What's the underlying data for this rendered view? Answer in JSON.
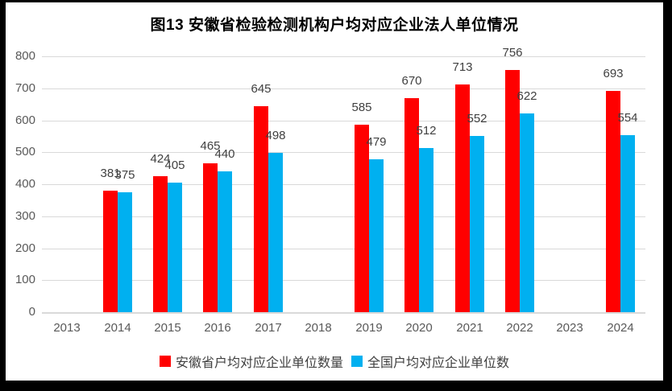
{
  "chart_data": {
    "type": "bar",
    "title": "图13  安徽省检验检测机构户均对应企业法人单位情况",
    "categories": [
      "2013",
      "2014",
      "2015",
      "2016",
      "2017",
      "2018",
      "2019",
      "2020",
      "2021",
      "2022",
      "2023",
      "2024"
    ],
    "series": [
      {
        "name": "安徽省户均对应企业单位数量",
        "color": "#FF0000",
        "values": [
          null,
          381,
          424,
          465,
          645,
          null,
          585,
          670,
          713,
          756,
          null,
          693
        ]
      },
      {
        "name": "全国户均对应企业单位数",
        "color": "#00B0F0",
        "values": [
          null,
          375,
          405,
          440,
          498,
          null,
          479,
          512,
          552,
          622,
          null,
          554
        ]
      }
    ],
    "ylim": [
      0,
      800
    ],
    "yticks": [
      0,
      100,
      200,
      300,
      400,
      500,
      600,
      700,
      800
    ],
    "grid": true,
    "legend_position": "bottom",
    "colors": {
      "gridline": "#D9D9D9",
      "axis_line": "#D9D9D9",
      "axis_text": "#595959",
      "data_label": "#404040",
      "frame_border": "#000000"
    }
  }
}
